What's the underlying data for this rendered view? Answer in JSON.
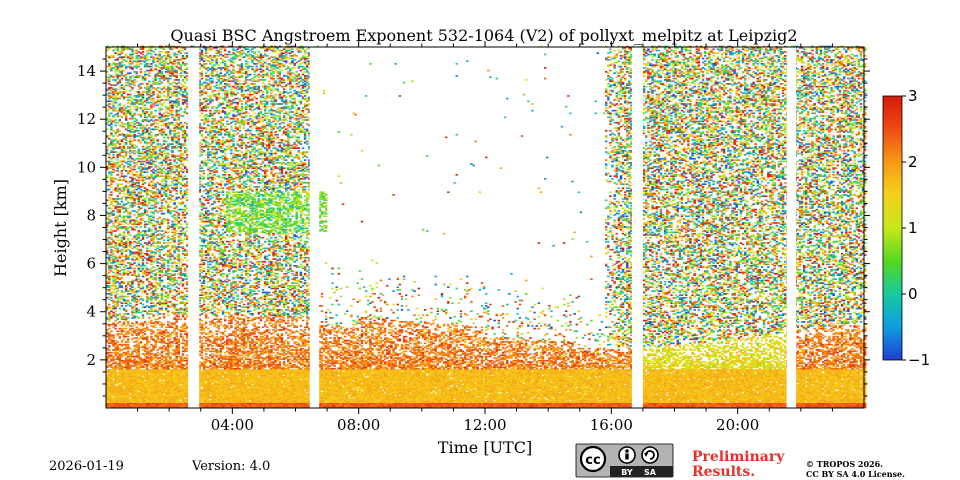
{
  "chart_data": {
    "type": "heatmap",
    "title": "Quasi BSC Angstroem Exponent 532-1064 (V2) of pollyxt_melpitz at Leipzig2",
    "xlabel": "Time [UTC]",
    "ylabel": "Height [km]",
    "xlim_hours": [
      0,
      24
    ],
    "ylim_km": [
      0,
      15
    ],
    "x_ticks": [
      {
        "hour": 4,
        "label": "04:00"
      },
      {
        "hour": 8,
        "label": "08:00"
      },
      {
        "hour": 12,
        "label": "12:00"
      },
      {
        "hour": 16,
        "label": "16:00"
      },
      {
        "hour": 20,
        "label": "20:00"
      }
    ],
    "y_ticks": [
      {
        "value": 2,
        "label": "2"
      },
      {
        "value": 4,
        "label": "4"
      },
      {
        "value": 6,
        "label": "6"
      },
      {
        "value": 8,
        "label": "8"
      },
      {
        "value": 10,
        "label": "10"
      },
      {
        "value": 12,
        "label": "12"
      },
      {
        "value": 14,
        "label": "14"
      }
    ],
    "colorbar": {
      "range": [
        -1,
        3
      ],
      "colormap": [
        "#1f3fd0",
        "#0e9ee0",
        "#19c9a0",
        "#55d820",
        "#c8e81a",
        "#f5d21a",
        "#f79a16",
        "#ee4a12",
        "#d61a0c"
      ],
      "ticks": [
        {
          "value": 3,
          "label": "3"
        },
        {
          "value": 2,
          "label": "2"
        },
        {
          "value": 1,
          "label": "1"
        },
        {
          "value": 0,
          "label": "0"
        },
        {
          "value": -1,
          "label": "−1"
        }
      ]
    },
    "data_gaps_hours": [
      [
        2.6,
        2.95
      ],
      [
        6.45,
        6.75
      ],
      [
        16.65,
        17.0
      ],
      [
        21.55,
        21.85
      ]
    ],
    "features": [
      {
        "name": "noisy free troposphere",
        "hours": [
          0,
          6.45
        ],
        "height_km": [
          4,
          15
        ],
        "value_range": [
          -1,
          3
        ]
      },
      {
        "name": "clear-signal region",
        "hours": [
          6.75,
          16.2
        ],
        "height_km": [
          5,
          15
        ]
      },
      {
        "name": "elevated layer",
        "hours": [
          3.8,
          7.0
        ],
        "height_km": [
          7.3,
          9.0
        ],
        "typical_value": 0.6
      },
      {
        "name": "boundary layer top",
        "hours": [
          0,
          24
        ],
        "height_km": [
          1.5,
          4.5
        ],
        "typical_value": 2.2
      },
      {
        "name": "boundary layer",
        "hours": [
          0,
          24
        ],
        "height_km": [
          0.2,
          1.6
        ],
        "typical_value": 1.7
      }
    ]
  },
  "footer": {
    "date": "2026-01-19",
    "version": "Version: 4.0",
    "preliminary_line1": "Preliminary",
    "preliminary_line2": "Results.",
    "license_line1": "© TROPOS 2026.",
    "license_line2": "CC BY SA 4.0 License.",
    "cc_badge_cc": "cc",
    "cc_badge_by": "BY",
    "cc_badge_sa": "SA"
  },
  "colors": {
    "preliminary": "#e8302a",
    "badge_bg": "#b3b3b3",
    "badge_bar": "#222222"
  }
}
